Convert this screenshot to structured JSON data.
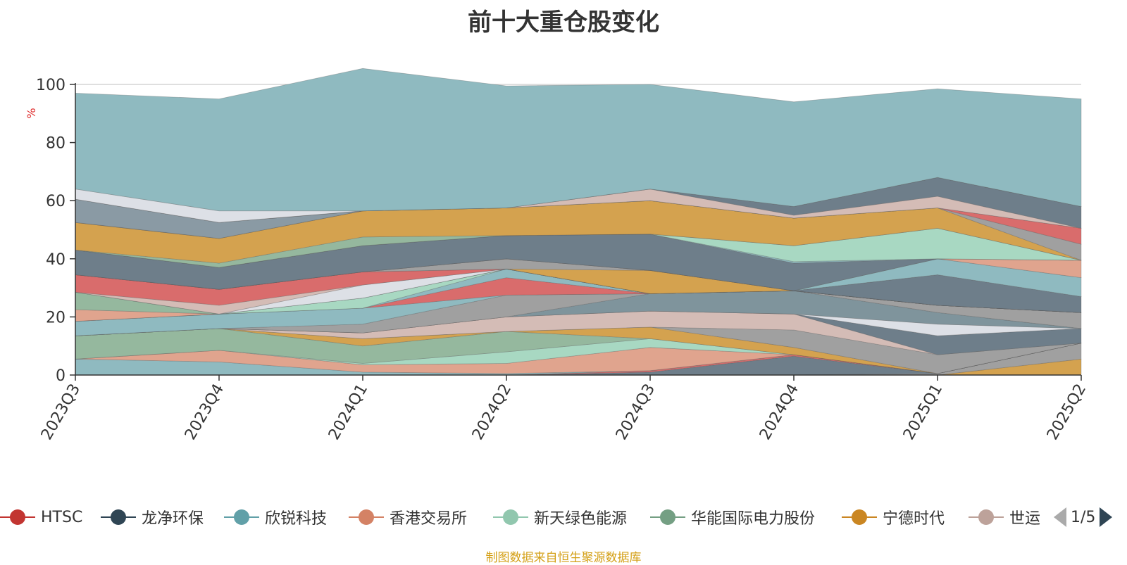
{
  "title": "前十大重仓股变化",
  "source_note": "制图数据来自恒生聚源数据库",
  "legend": {
    "items": [
      {
        "label": "HTSC",
        "color": "#c23531"
      },
      {
        "label": "龙净环保",
        "color": "#2f4554"
      },
      {
        "label": "欣锐科技",
        "color": "#61a0a8"
      },
      {
        "label": "香港交易所",
        "color": "#d48265"
      },
      {
        "label": "新天绿色能源",
        "color": "#91c7ae"
      },
      {
        "label": "华能国际电力股份",
        "color": "#749f83"
      },
      {
        "label": "宁德时代",
        "color": "#ca8622"
      },
      {
        "label": "世运",
        "color": "#bda29a"
      }
    ],
    "page": "1/5"
  },
  "chart_data": {
    "type": "area",
    "stacked": true,
    "categories": [
      "2023Q3",
      "2023Q4",
      "2024Q1",
      "2024Q2",
      "2024Q3",
      "2024Q4",
      "2025Q1",
      "2025Q2"
    ],
    "ylabel": "%",
    "ylim": [
      0,
      100
    ],
    "yticks": [
      0,
      20,
      40,
      60,
      80,
      100
    ],
    "grid": true,
    "series": [
      {
        "color": "#d4a24f",
        "values": [
          0,
          0,
          0,
          0,
          0,
          0,
          0,
          5.5
        ]
      },
      {
        "color": "#a0a0a0",
        "values": [
          0,
          0,
          0,
          0,
          0,
          0,
          0.5,
          5.5
        ]
      },
      {
        "color": "#6e7e8a",
        "values": [
          0,
          0,
          0,
          0,
          1.0,
          6.5,
          0,
          0
        ]
      },
      {
        "color": "#d96c6c",
        "values": [
          0,
          0,
          0,
          0,
          0.5,
          0.5,
          0,
          0
        ]
      },
      {
        "color": "#8fbac0",
        "values": [
          5.5,
          4.5,
          1.0,
          0.5,
          0,
          0,
          0,
          0
        ]
      },
      {
        "color": "#e0a48e",
        "values": [
          0,
          4.0,
          2.5,
          3.5,
          8.0,
          0,
          0,
          0
        ]
      },
      {
        "color": "#a8d8c2",
        "values": [
          0,
          0,
          0.5,
          4.0,
          3.0,
          0,
          0,
          0
        ]
      },
      {
        "color": "#95b89e",
        "values": [
          8.0,
          7.5,
          6.0,
          7.0,
          0,
          0,
          0,
          0
        ]
      },
      {
        "color": "#d4a24f",
        "values": [
          0,
          0,
          2.5,
          0,
          4.0,
          2.5,
          0,
          0
        ]
      },
      {
        "color": "#a0a0a0",
        "values": [
          0,
          0,
          0,
          0,
          0,
          6.0,
          6.5,
          0
        ]
      },
      {
        "color": "#d4bcb6",
        "values": [
          0,
          0,
          2.0,
          5.0,
          5.5,
          5.5,
          0,
          0
        ]
      },
      {
        "color": "#6e7e8a",
        "values": [
          0,
          0,
          0,
          0,
          0,
          0,
          6.5,
          5.0
        ]
      },
      {
        "color": "#dde0e6",
        "values": [
          0,
          0,
          0,
          0,
          0,
          0,
          4.0,
          0
        ]
      },
      {
        "color": "#7f949c",
        "values": [
          0,
          0,
          0,
          0,
          6.0,
          8.0,
          4.0,
          0
        ]
      },
      {
        "color": "#a0a0a0",
        "values": [
          0,
          0,
          3.0,
          7.5,
          0,
          0,
          2.5,
          5.5
        ]
      },
      {
        "color": "#8fbac0",
        "values": [
          5.0,
          5.0,
          5.5,
          0,
          0,
          0,
          0,
          0
        ]
      },
      {
        "color": "#d96c6c",
        "values": [
          0,
          0,
          0,
          6.0,
          0,
          0,
          0,
          0
        ]
      },
      {
        "color": "#8fbac0",
        "values": [
          0,
          0,
          0,
          3.0,
          0,
          0,
          0,
          0
        ]
      },
      {
        "color": "#a8d8c2",
        "values": [
          0,
          0,
          3.5,
          0,
          0,
          0,
          0,
          0
        ]
      },
      {
        "color": "#e0a48e",
        "values": [
          4.0,
          0,
          0,
          0,
          0,
          0,
          0,
          0
        ]
      },
      {
        "color": "#95b89e",
        "values": [
          6.0,
          0,
          0,
          0,
          0,
          0,
          0,
          0
        ]
      },
      {
        "color": "#dde0e6",
        "values": [
          0,
          0,
          4.5,
          0,
          0,
          0,
          0,
          0
        ]
      },
      {
        "color": "#d4bcb6",
        "values": [
          0,
          3.0,
          0,
          0,
          0,
          0,
          0,
          0
        ]
      },
      {
        "color": "#d96c6c",
        "values": [
          6.0,
          5.5,
          4.5,
          0,
          0,
          0,
          0,
          0
        ]
      },
      {
        "color": "#d4a24f",
        "values": [
          0,
          0,
          0,
          0,
          8.0,
          0,
          0,
          0
        ]
      },
      {
        "color": "#a0a0a0",
        "values": [
          0,
          0,
          0,
          3.5,
          0,
          0,
          0,
          0
        ]
      },
      {
        "color": "#6e7e8a",
        "values": [
          0,
          0,
          0,
          0,
          0,
          0,
          10.5,
          5.5
        ]
      },
      {
        "color": "#8fbac0",
        "values": [
          0,
          0,
          0,
          0,
          0,
          0,
          5.5,
          6.5
        ]
      },
      {
        "color": "#e0a48e",
        "values": [
          0,
          0,
          0,
          0,
          0,
          0,
          0,
          6.0
        ]
      },
      {
        "color": "#6e7e8a",
        "values": [
          8.5,
          7.5,
          9.0,
          8.0,
          12.5,
          9.5,
          0,
          0
        ]
      },
      {
        "color": "#8fbac0",
        "values": [
          0,
          0,
          0,
          0,
          0,
          0.5,
          0,
          0
        ]
      },
      {
        "color": "#a8d8c2",
        "values": [
          0,
          0,
          0,
          0,
          0,
          5.5,
          10.5,
          0
        ]
      },
      {
        "color": "#95b89e",
        "values": [
          0,
          1.5,
          3.0,
          0,
          0,
          0,
          0,
          0
        ]
      },
      {
        "color": "#d4a24f",
        "values": [
          9.5,
          8.5,
          9.0,
          9.5,
          11.5,
          9.5,
          7.0,
          0
        ]
      },
      {
        "color": "#a0a0a0",
        "values": [
          0,
          0,
          0,
          0,
          0,
          0,
          0,
          5.5
        ]
      },
      {
        "color": "#d96c6c",
        "values": [
          0,
          0,
          0,
          0,
          0,
          0,
          0,
          5.5
        ]
      },
      {
        "color": "#8a9aa4",
        "values": [
          8.0,
          5.5,
          0,
          0,
          0,
          0,
          0,
          0
        ]
      },
      {
        "color": "#d4bcb6",
        "values": [
          0,
          0,
          0,
          0,
          4.0,
          1.0,
          4.0,
          0
        ]
      },
      {
        "color": "#6e7e8a",
        "values": [
          0,
          0,
          0,
          0,
          0,
          3.0,
          6.5,
          7.5
        ]
      },
      {
        "color": "#dde0e6",
        "values": [
          3.5,
          4.0,
          0,
          0,
          0,
          0,
          0,
          0
        ]
      },
      {
        "color": "#8fbac0",
        "values": [
          33.0,
          38.5,
          49.0,
          42.0,
          36.0,
          36.0,
          30.5,
          37.0
        ]
      }
    ]
  }
}
